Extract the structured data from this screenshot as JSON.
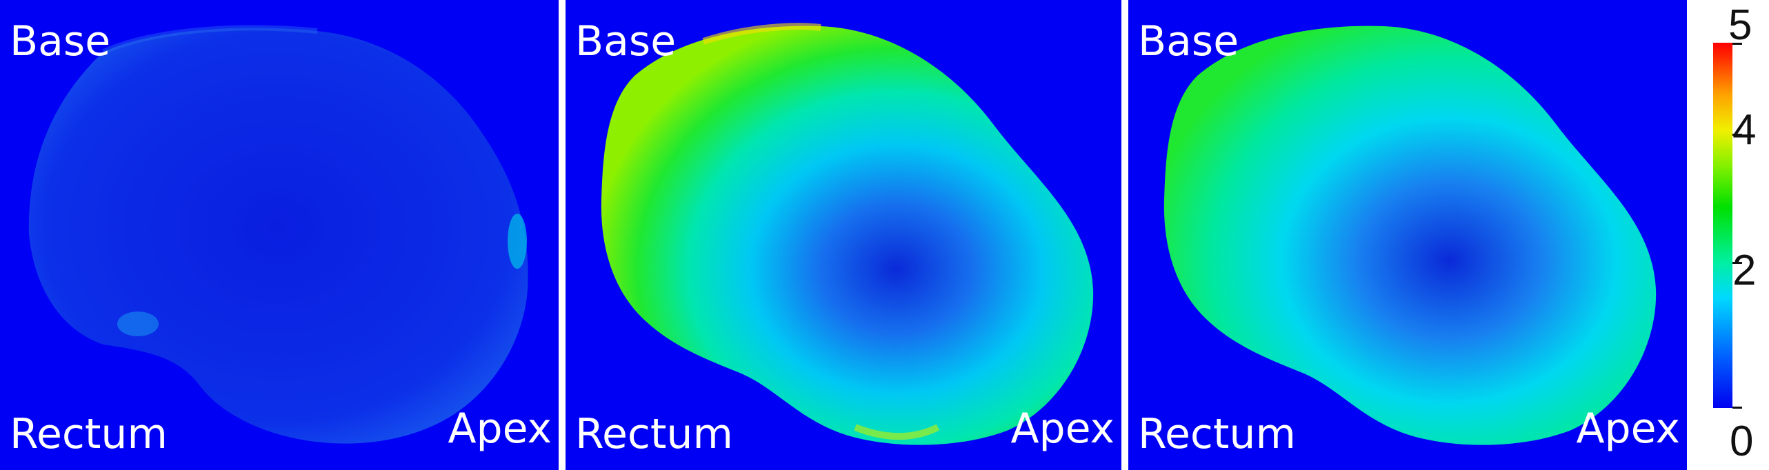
{
  "panels": [
    {
      "base_label": "Base",
      "rectum_label": "Rectum",
      "apex_label": "Apex",
      "map": "low-error"
    },
    {
      "base_label": "Base",
      "rectum_label": "Rectum",
      "apex_label": "Apex",
      "map": "high-error"
    },
    {
      "base_label": "Base",
      "rectum_label": "Rectum",
      "apex_label": "Apex",
      "map": "medium-error"
    }
  ],
  "colorbar": {
    "max_label": "5",
    "tick_4": "4",
    "tick_2": "2",
    "min_label": "0",
    "colors": [
      "#0000f0",
      "#00d8ff",
      "#00e000",
      "#f0f000",
      "#ff0000"
    ]
  }
}
